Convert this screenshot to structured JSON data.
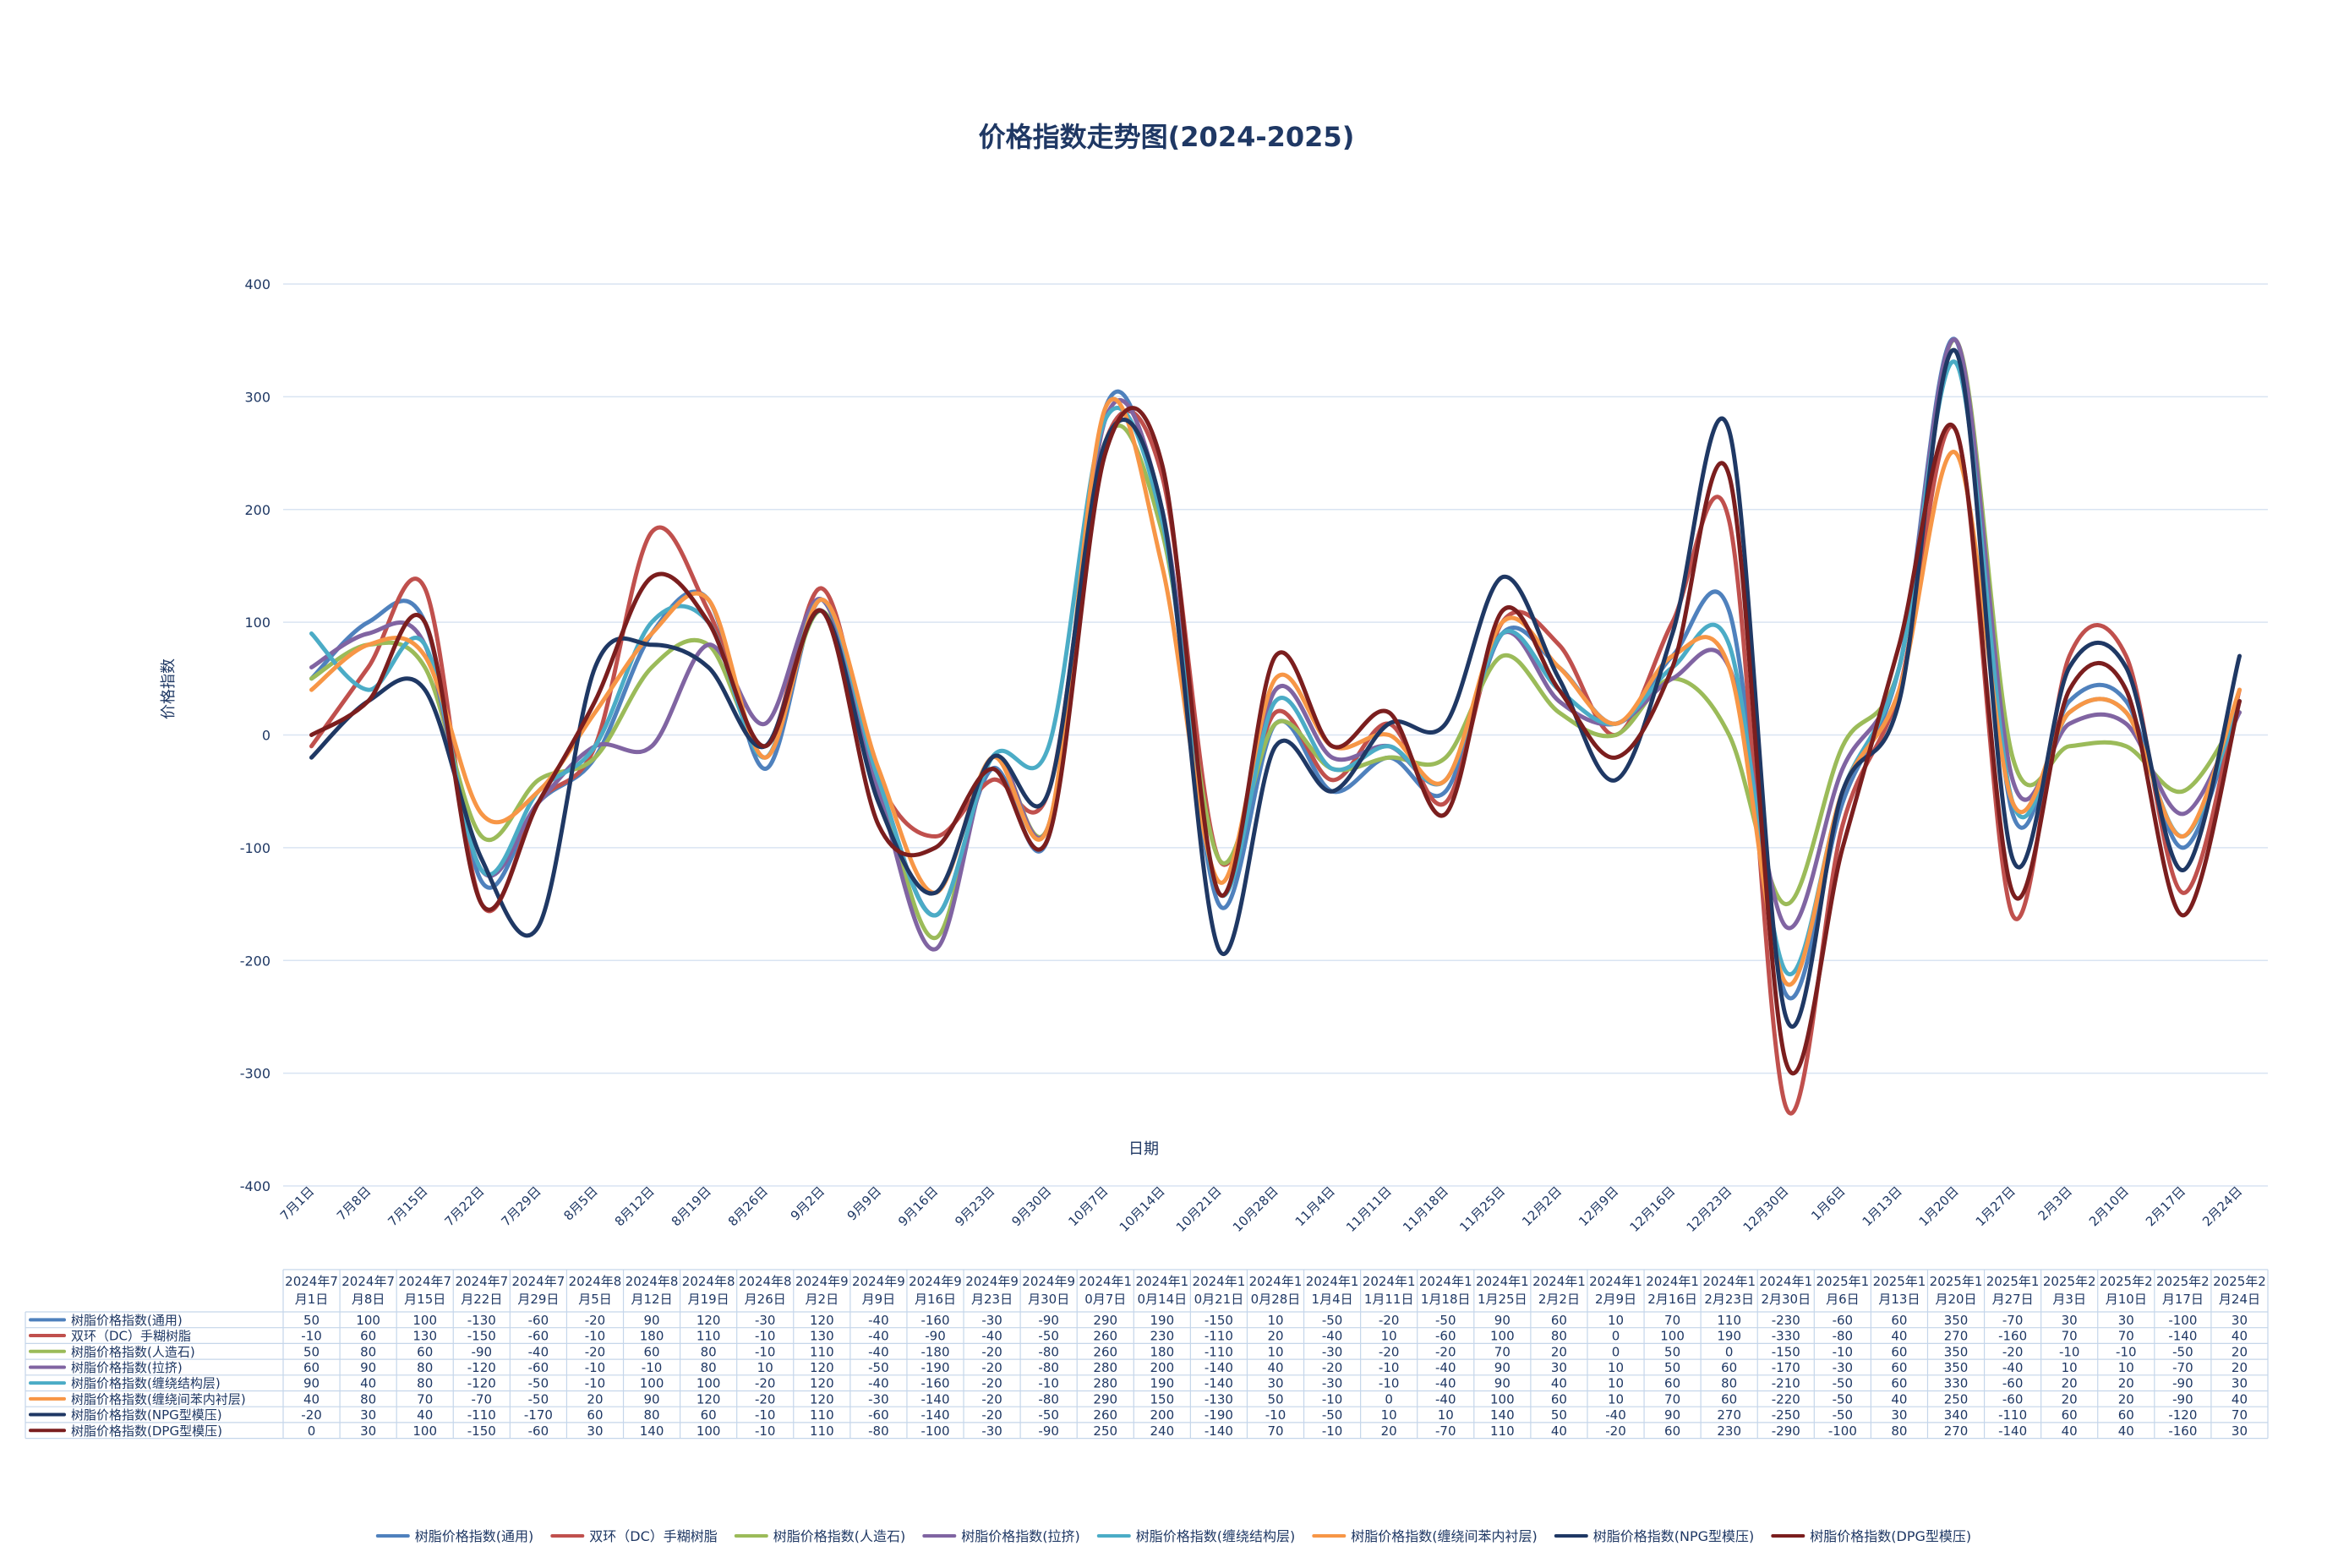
{
  "chart_data": {
    "type": "line",
    "title": "价格指数走势图(2024-2025)",
    "xlabel": "日期",
    "ylabel": "价格指数",
    "ylim": [
      -400,
      400
    ],
    "yticks": [
      400,
      300,
      200,
      100,
      0,
      -100,
      -200,
      -300,
      -400
    ],
    "grid": true,
    "smooth": true,
    "legend_position": "bottom",
    "data_table": true,
    "categories": [
      "7月1日",
      "7月8日",
      "7月15日",
      "7月22日",
      "7月29日",
      "8月5日",
      "8月12日",
      "8月19日",
      "8月26日",
      "9月2日",
      "9月9日",
      "9月16日",
      "9月23日",
      "9月30日",
      "10月7日",
      "10月14日",
      "10月21日",
      "10月28日",
      "11月4日",
      "11月11日",
      "11月18日",
      "11月25日",
      "12月2日",
      "12月9日",
      "12月16日",
      "12月23日",
      "12月30日",
      "1月6日",
      "1月13日",
      "1月20日",
      "1月27日",
      "2月3日",
      "2月10日",
      "2月17日",
      "2月24日"
    ],
    "table_header_line1": [
      "2024年7",
      "2024年7",
      "2024年7",
      "2024年7",
      "2024年7",
      "2024年8",
      "2024年8",
      "2024年8",
      "2024年8",
      "2024年9",
      "2024年9",
      "2024年9",
      "2024年9",
      "2024年9",
      "2024年1",
      "2024年1",
      "2024年1",
      "2024年1",
      "2024年1",
      "2024年1",
      "2024年1",
      "2024年1",
      "2024年1",
      "2024年1",
      "2024年1",
      "2024年1",
      "2024年1",
      "2025年1",
      "2025年1",
      "2025年1",
      "2025年1",
      "2025年2",
      "2025年2",
      "2025年2",
      "2025年2"
    ],
    "table_header_line2": [
      "月1日",
      "月8日",
      "月15日",
      "月22日",
      "月29日",
      "月5日",
      "月12日",
      "月19日",
      "月26日",
      "月2日",
      "月9日",
      "月16日",
      "月23日",
      "月30日",
      "0月7日",
      "0月14日",
      "0月21日",
      "0月28日",
      "1月4日",
      "1月11日",
      "1月18日",
      "1月25日",
      "2月2日",
      "2月9日",
      "2月16日",
      "2月23日",
      "2月30日",
      "月6日",
      "月13日",
      "月20日",
      "月27日",
      "月3日",
      "月10日",
      "月17日",
      "月24日"
    ],
    "series": [
      {
        "name": "树脂价格指数(通用)",
        "color": "#4f81bd",
        "values": [
          50,
          100,
          100,
          -130,
          -60,
          -20,
          90,
          120,
          -30,
          120,
          -40,
          -160,
          -30,
          -90,
          290,
          190,
          -150,
          10,
          -50,
          -20,
          -50,
          90,
          60,
          10,
          70,
          110,
          -230,
          -60,
          60,
          350,
          -70,
          30,
          30,
          -100,
          30
        ]
      },
      {
        "name": "双环（DC）手糊树脂",
        "color": "#c0504d",
        "values": [
          -10,
          60,
          130,
          -150,
          -60,
          -10,
          180,
          110,
          -10,
          130,
          -40,
          -90,
          -40,
          -50,
          260,
          230,
          -110,
          20,
          -40,
          10,
          -60,
          100,
          80,
          0,
          100,
          190,
          -330,
          -80,
          40,
          270,
          -160,
          70,
          70,
          -140,
          40
        ]
      },
      {
        "name": "树脂价格指数(人造石)",
        "color": "#9bbb59",
        "values": [
          50,
          80,
          60,
          -90,
          -40,
          -20,
          60,
          80,
          -10,
          110,
          -40,
          -180,
          -20,
          -80,
          260,
          180,
          -110,
          10,
          -30,
          -20,
          -20,
          70,
          20,
          0,
          50,
          0,
          -150,
          -10,
          60,
          350,
          -20,
          -10,
          -10,
          -50,
          20
        ]
      },
      {
        "name": "树脂价格指数(拉挤)",
        "color": "#8064a2",
        "values": [
          60,
          90,
          80,
          -120,
          -60,
          -10,
          -10,
          80,
          10,
          120,
          -50,
          -190,
          -20,
          -80,
          280,
          200,
          -140,
          40,
          -20,
          -10,
          -40,
          90,
          30,
          10,
          50,
          60,
          -170,
          -30,
          60,
          350,
          -40,
          10,
          10,
          -70,
          20
        ]
      },
      {
        "name": "树脂价格指数(缠绕结构层)",
        "color": "#4bacc6",
        "values": [
          90,
          40,
          80,
          -120,
          -50,
          -10,
          100,
          100,
          -20,
          120,
          -40,
          -160,
          -20,
          -10,
          280,
          190,
          -140,
          30,
          -30,
          -10,
          -40,
          90,
          40,
          10,
          60,
          80,
          -210,
          -50,
          60,
          330,
          -60,
          20,
          20,
          -90,
          30
        ]
      },
      {
        "name": "树脂价格指数(缠绕间苯内衬层)",
        "color": "#f79646",
        "values": [
          40,
          80,
          70,
          -70,
          -50,
          20,
          90,
          120,
          -20,
          120,
          -30,
          -140,
          -20,
          -80,
          290,
          150,
          -130,
          50,
          -10,
          0,
          -40,
          100,
          60,
          10,
          70,
          60,
          -220,
          -50,
          40,
          250,
          -60,
          20,
          20,
          -90,
          40
        ]
      },
      {
        "name": "树脂价格指数(NPG型模压)",
        "color": "#1f3864",
        "values": [
          -20,
          30,
          40,
          -110,
          -170,
          60,
          80,
          60,
          -10,
          110,
          -60,
          -140,
          -20,
          -50,
          260,
          200,
          -190,
          -10,
          -50,
          10,
          10,
          140,
          50,
          -40,
          90,
          270,
          -250,
          -50,
          30,
          340,
          -110,
          60,
          60,
          -120,
          70
        ]
      },
      {
        "name": "树脂价格指数(DPG型模压)",
        "color": "#7b1e1e",
        "values": [
          0,
          30,
          100,
          -150,
          -60,
          30,
          140,
          100,
          -10,
          110,
          -80,
          -100,
          -30,
          -90,
          250,
          240,
          -140,
          70,
          -10,
          20,
          -70,
          110,
          40,
          -20,
          60,
          230,
          -290,
          -100,
          80,
          270,
          -140,
          40,
          40,
          -160,
          30
        ]
      }
    ]
  }
}
